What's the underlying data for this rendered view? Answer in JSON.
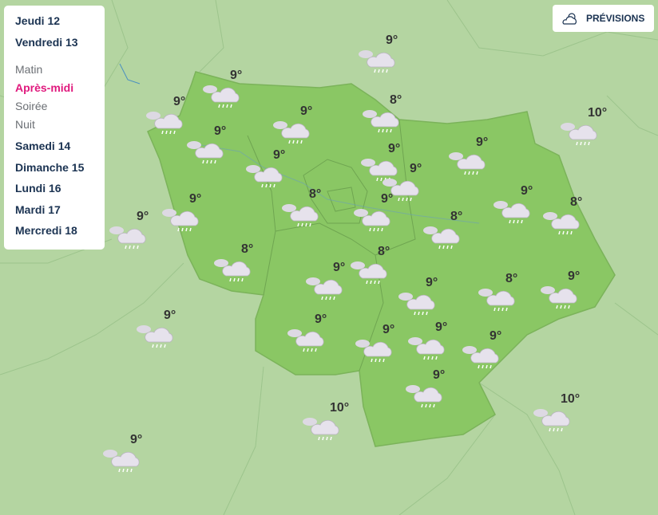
{
  "menu": {
    "days_top": [
      "Jeudi 12",
      "Vendredi 13"
    ],
    "periods": [
      "Matin",
      "Après-midi",
      "Soirée",
      "Nuit"
    ],
    "active_period": "Après-midi",
    "days_bottom": [
      "Samedi 14",
      "Dimanche 15",
      "Lundi 16",
      "Mardi 17",
      "Mercredi 18"
    ]
  },
  "forecast_button": {
    "label": "PRÉVISIONS",
    "icon": "sun-cloud-icon"
  },
  "colors": {
    "background": "#b4d5a1",
    "region": "#8ac764",
    "active": "#e0197d",
    "text": "#1b3352"
  },
  "markers": {
    "icon": "rain-cloud-icon",
    "temps": [
      "9°",
      "9°",
      "9°",
      "9°",
      "8°",
      "10°",
      "9°",
      "9°",
      "9°",
      "9°",
      "9°",
      "9°",
      "8°",
      "9°",
      "9°",
      "8°",
      "9°",
      "8°",
      "8°",
      "9°",
      "8°",
      "9°",
      "8°",
      "9°",
      "9°",
      "9°",
      "9°",
      "9°",
      "9°",
      "9°",
      "10°",
      "10°",
      "9°"
    ]
  }
}
